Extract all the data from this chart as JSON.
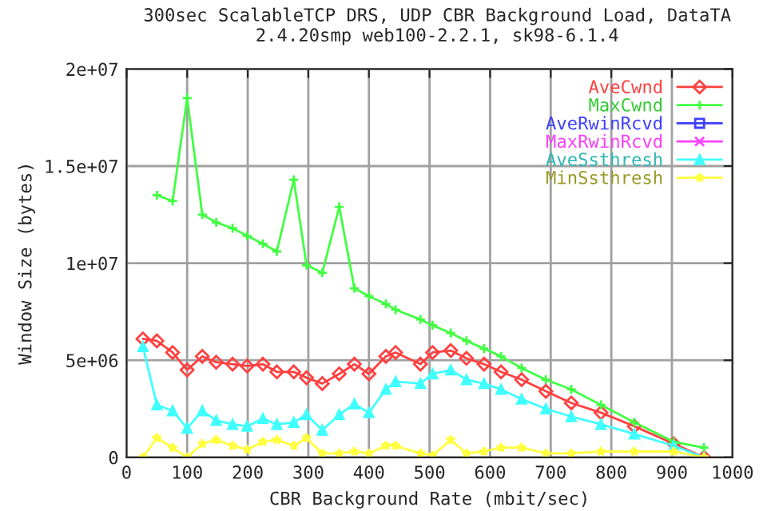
{
  "chart_data": {
    "type": "line",
    "title": "300sec ScalableTCP DRS, UDP CBR Background Load, DataTA",
    "subtitle": "2.4.20smp web100-2.2.1, sk98-6.1.4",
    "xlabel": "CBR Background Rate (mbit/sec)",
    "ylabel": "Window Size (bytes)",
    "x": [
      27,
      50,
      76,
      100,
      125,
      148,
      175,
      199,
      225,
      248,
      276,
      297,
      323,
      351,
      376,
      400,
      428,
      444,
      485,
      505,
      535,
      561,
      590,
      618,
      652,
      692,
      734,
      783,
      838,
      903,
      953
    ],
    "xlim": [
      0,
      1000
    ],
    "xticks": [
      0,
      100,
      200,
      300,
      400,
      500,
      600,
      700,
      800,
      900,
      1000
    ],
    "ylim": [
      0,
      20000000
    ],
    "yticks": [
      0,
      {
        "value": 5000000,
        "label": "5e+06"
      },
      {
        "value": 10000000,
        "label": "1e+07"
      },
      {
        "value": 15000000,
        "label": "1.5e+07"
      },
      {
        "value": 20000000,
        "label": "2e+07"
      }
    ],
    "grid": true,
    "legend": "top right",
    "line_style": "solid",
    "series": [
      {
        "name": "AveCwnd",
        "color": "#ff4040",
        "marker": "diamond",
        "values": [
          6100000,
          6000000,
          5400000,
          4500000,
          5200000,
          4900000,
          4800000,
          4700000,
          4800000,
          4400000,
          4400000,
          4100000,
          3800000,
          4300000,
          4800000,
          4300000,
          5200000,
          5400000,
          4800000,
          5400000,
          5500000,
          5100000,
          4800000,
          4400000,
          4000000,
          3400000,
          2800000,
          2300000,
          1600000,
          700000,
          0
        ]
      },
      {
        "name": "MaxCwnd",
        "color": "#40ff40",
        "marker": "cross",
        "values": [
          null,
          13500000,
          13200000,
          18500000,
          12500000,
          12100000,
          11800000,
          11400000,
          11000000,
          10600000,
          14300000,
          9900000,
          9500000,
          12900000,
          8700000,
          8300000,
          7900000,
          7600000,
          7100000,
          6800000,
          6400000,
          6000000,
          5600000,
          5200000,
          4600000,
          4000000,
          3500000,
          2700000,
          1800000,
          800000,
          500000
        ]
      },
      {
        "name": "AveRwinRcvd",
        "color": "#4040ff",
        "marker": "square",
        "values": [
          null,
          null,
          null,
          null,
          null,
          null,
          null,
          null,
          null,
          null,
          null,
          null,
          null,
          null,
          null,
          null,
          null,
          null,
          null,
          null,
          null,
          null,
          null,
          null,
          null,
          null,
          null,
          null,
          null,
          null,
          null
        ]
      },
      {
        "name": "MaxRwinRcvd",
        "color": "#ff40ff",
        "marker": "x",
        "values": [
          null,
          null,
          null,
          null,
          null,
          null,
          null,
          null,
          null,
          null,
          null,
          null,
          null,
          null,
          null,
          null,
          null,
          null,
          null,
          null,
          null,
          null,
          null,
          null,
          null,
          null,
          null,
          null,
          null,
          null,
          null
        ]
      },
      {
        "name": "AveSsthresh",
        "color": "#40ffff",
        "marker": "triangle",
        "values": [
          5700000,
          2700000,
          2400000,
          1500000,
          2400000,
          1900000,
          1700000,
          1600000,
          2000000,
          1700000,
          1800000,
          2200000,
          1400000,
          2200000,
          2750000,
          2300000,
          3500000,
          3900000,
          3800000,
          4300000,
          4500000,
          4000000,
          3800000,
          3500000,
          3000000,
          2500000,
          2100000,
          1700000,
          1200000,
          600000,
          0
        ]
      },
      {
        "name": "MinSsthresh",
        "color": "#ffff40",
        "marker": "star",
        "values": [
          0,
          1000000,
          500000,
          0,
          700000,
          900000,
          600000,
          400000,
          800000,
          900000,
          600000,
          1000000,
          200000,
          200000,
          300000,
          200000,
          600000,
          600000,
          200000,
          100000,
          900000,
          200000,
          300000,
          500000,
          500000,
          200000,
          200000,
          300000,
          300000,
          300000,
          0
        ]
      }
    ]
  }
}
